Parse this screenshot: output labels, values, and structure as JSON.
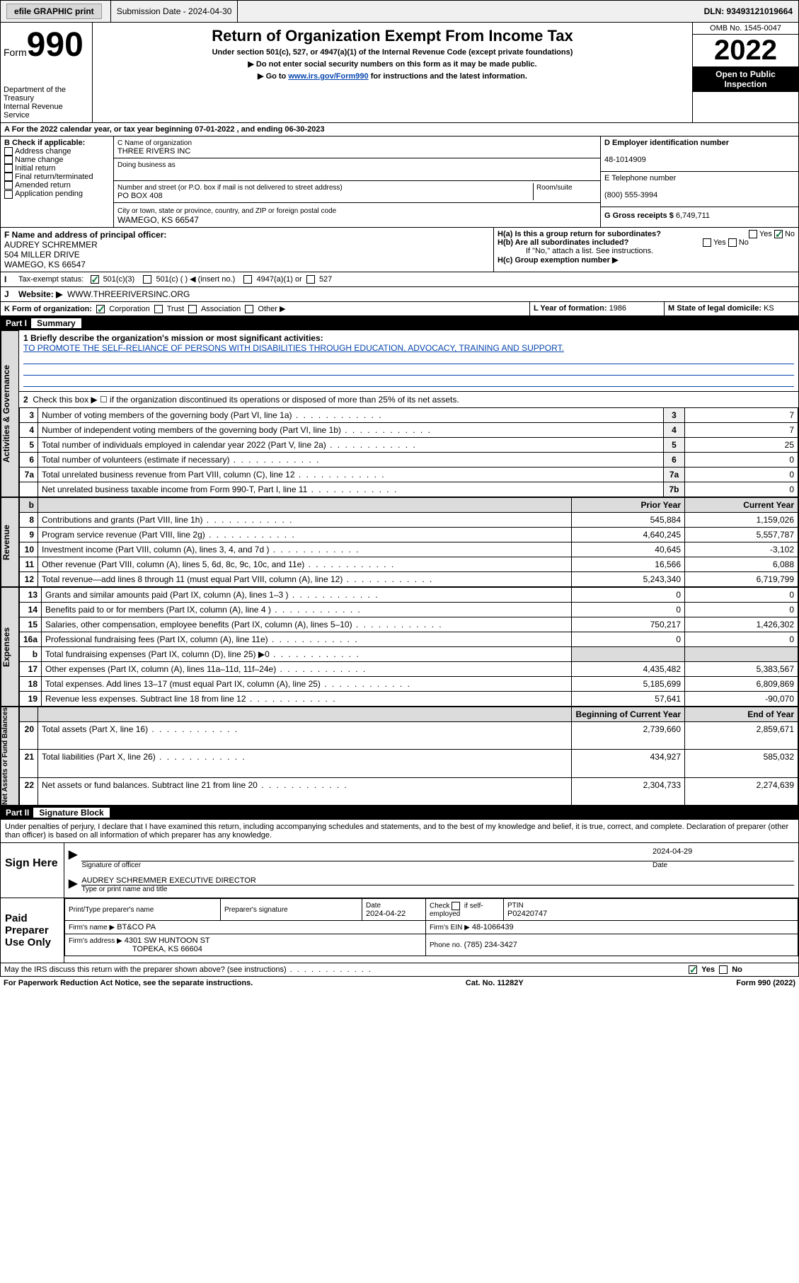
{
  "topbar": {
    "efile_label": "efile GRAPHIC print",
    "submission_label": "Submission Date - 2024-04-30",
    "dln_label": "DLN: 93493121019664"
  },
  "header": {
    "form_word": "Form",
    "form_num": "990",
    "dept": "Department of the Treasury",
    "irs": "Internal Revenue Service",
    "title": "Return of Organization Exempt From Income Tax",
    "sub1": "Under section 501(c), 527, or 4947(a)(1) of the Internal Revenue Code (except private foundations)",
    "sub2": "▶ Do not enter social security numbers on this form as it may be made public.",
    "sub3_pre": "▶ Go to ",
    "sub3_link": "www.irs.gov/Form990",
    "sub3_post": " for instructions and the latest information.",
    "omb": "OMB No. 1545-0047",
    "year": "2022",
    "open": "Open to Public Inspection"
  },
  "periodA": "For the 2022 calendar year, or tax year beginning 07-01-2022   , and ending 06-30-2023",
  "boxB": {
    "label": "B Check if applicable:",
    "items": [
      "Address change",
      "Name change",
      "Initial return",
      "Final return/terminated",
      "Amended return",
      "Application pending"
    ]
  },
  "boxC": {
    "name_label": "C Name of organization",
    "name": "THREE RIVERS INC",
    "dba_label": "Doing business as",
    "addr_label": "Number and street (or P.O. box if mail is not delivered to street address)",
    "room_label": "Room/suite",
    "addr": "PO BOX 408",
    "city_label": "City or town, state or province, country, and ZIP or foreign postal code",
    "city": "WAMEGO, KS  66547"
  },
  "boxD": {
    "label": "D Employer identification number",
    "val": "48-1014909"
  },
  "boxE": {
    "label": "E Telephone number",
    "val": "(800) 555-3994"
  },
  "boxG": {
    "label": "G Gross receipts $",
    "val": "6,749,711"
  },
  "boxF": {
    "label": "F Name and address of principal officer:",
    "name": "AUDREY SCHREMMER",
    "addr1": "504 MILLER DRIVE",
    "addr2": "WAMEGO, KS  66547"
  },
  "boxH": {
    "a": "H(a)  Is this a group return for subordinates?",
    "b": "H(b)  Are all subordinates included?",
    "bnote": "If \"No,\" attach a list. See instructions.",
    "c": "H(c)  Group exemption number ▶",
    "yes": "Yes",
    "no": "No"
  },
  "boxI": {
    "label": "Tax-exempt status:",
    "o1": "501(c)(3)",
    "o2": "501(c) (  ) ◀ (insert no.)",
    "o3": "4947(a)(1) or",
    "o4": "527"
  },
  "boxJ": {
    "label": "Website: ▶",
    "val": "WWW.THREERIVERSINC.ORG"
  },
  "boxK": {
    "label": "K Form of organization:",
    "opts": [
      "Corporation",
      "Trust",
      "Association",
      "Other ▶"
    ]
  },
  "boxL": {
    "label": "L Year of formation:",
    "val": "1986"
  },
  "boxM": {
    "label": "M State of legal domicile:",
    "val": "KS"
  },
  "part1": {
    "num": "Part I",
    "title": "Summary"
  },
  "mission_label": "1  Briefly describe the organization's mission or most significant activities:",
  "mission": "TO PROMOTE THE SELF-RELIANCE OF PERSONS WITH DISABILITIES THROUGH EDUCATION, ADVOCACY, TRAINING AND SUPPORT.",
  "line2": "Check this box ▶ ☐  if the organization discontinued its operations or disposed of more than 25% of its net assets.",
  "sides": {
    "ag": "Activities & Governance",
    "rev": "Revenue",
    "exp": "Expenses",
    "na": "Net Assets or Fund Balances"
  },
  "col_headers": {
    "prior": "Prior Year",
    "current": "Current Year",
    "boy": "Beginning of Current Year",
    "eoy": "End of Year"
  },
  "lines_ag": [
    {
      "n": "3",
      "d": "Number of voting members of the governing body (Part VI, line 1a)",
      "r": "3",
      "v": "7"
    },
    {
      "n": "4",
      "d": "Number of independent voting members of the governing body (Part VI, line 1b)",
      "r": "4",
      "v": "7"
    },
    {
      "n": "5",
      "d": "Total number of individuals employed in calendar year 2022 (Part V, line 2a)",
      "r": "5",
      "v": "25"
    },
    {
      "n": "6",
      "d": "Total number of volunteers (estimate if necessary)",
      "r": "6",
      "v": "0"
    },
    {
      "n": "7a",
      "d": "Total unrelated business revenue from Part VIII, column (C), line 12",
      "r": "7a",
      "v": "0"
    },
    {
      "n": "",
      "d": "Net unrelated business taxable income from Form 990-T, Part I, line 11",
      "r": "7b",
      "v": "0"
    }
  ],
  "lines_rev": [
    {
      "n": "8",
      "d": "Contributions and grants (Part VIII, line 1h)",
      "p": "545,884",
      "c": "1,159,026"
    },
    {
      "n": "9",
      "d": "Program service revenue (Part VIII, line 2g)",
      "p": "4,640,245",
      "c": "5,557,787"
    },
    {
      "n": "10",
      "d": "Investment income (Part VIII, column (A), lines 3, 4, and 7d )",
      "p": "40,645",
      "c": "-3,102"
    },
    {
      "n": "11",
      "d": "Other revenue (Part VIII, column (A), lines 5, 6d, 8c, 9c, 10c, and 11e)",
      "p": "16,566",
      "c": "6,088"
    },
    {
      "n": "12",
      "d": "Total revenue—add lines 8 through 11 (must equal Part VIII, column (A), line 12)",
      "p": "5,243,340",
      "c": "6,719,799"
    }
  ],
  "lines_exp": [
    {
      "n": "13",
      "d": "Grants and similar amounts paid (Part IX, column (A), lines 1–3 )",
      "p": "0",
      "c": "0"
    },
    {
      "n": "14",
      "d": "Benefits paid to or for members (Part IX, column (A), line 4 )",
      "p": "0",
      "c": "0"
    },
    {
      "n": "15",
      "d": "Salaries, other compensation, employee benefits (Part IX, column (A), lines 5–10)",
      "p": "750,217",
      "c": "1,426,302"
    },
    {
      "n": "16a",
      "d": "Professional fundraising fees (Part IX, column (A), line 11e)",
      "p": "0",
      "c": "0"
    },
    {
      "n": "b",
      "d": "Total fundraising expenses (Part IX, column (D), line 25) ▶0",
      "p": "",
      "c": ""
    },
    {
      "n": "17",
      "d": "Other expenses (Part IX, column (A), lines 11a–11d, 11f–24e)",
      "p": "4,435,482",
      "c": "5,383,567"
    },
    {
      "n": "18",
      "d": "Total expenses. Add lines 13–17 (must equal Part IX, column (A), line 25)",
      "p": "5,185,699",
      "c": "6,809,869"
    },
    {
      "n": "19",
      "d": "Revenue less expenses. Subtract line 18 from line 12",
      "p": "57,641",
      "c": "-90,070"
    }
  ],
  "lines_na": [
    {
      "n": "20",
      "d": "Total assets (Part X, line 16)",
      "p": "2,739,660",
      "c": "2,859,671"
    },
    {
      "n": "21",
      "d": "Total liabilities (Part X, line 26)",
      "p": "434,927",
      "c": "585,032"
    },
    {
      "n": "22",
      "d": "Net assets or fund balances. Subtract line 21 from line 20",
      "p": "2,304,733",
      "c": "2,274,639"
    }
  ],
  "part2": {
    "num": "Part II",
    "title": "Signature Block"
  },
  "perjury": "Under penalties of perjury, I declare that I have examined this return, including accompanying schedules and statements, and to the best of my knowledge and belief, it is true, correct, and complete. Declaration of preparer (other than officer) is based on all information of which preparer has any knowledge.",
  "sign": {
    "here": "Sign Here",
    "sig_label": "Signature of officer",
    "date": "2024-04-29",
    "date_label": "Date",
    "name": "AUDREY SCHREMMER  EXECUTIVE DIRECTOR",
    "name_label": "Type or print name and title"
  },
  "prep": {
    "title": "Paid Preparer Use Only",
    "h1": "Print/Type preparer's name",
    "h2": "Preparer's signature",
    "h3": "Date",
    "date": "2024-04-22",
    "h4_pre": "Check",
    "h4_post": "if self-employed",
    "h5": "PTIN",
    "ptin": "P02420747",
    "firm_name_label": "Firm's name    ▶",
    "firm_name": "BT&CO PA",
    "firm_ein_label": "Firm's EIN ▶",
    "firm_ein": "48-1066439",
    "firm_addr_label": "Firm's address ▶",
    "firm_addr1": "4301 SW HUNTOON ST",
    "firm_addr2": "TOPEKA, KS  66604",
    "phone_label": "Phone no.",
    "phone": "(785) 234-3427"
  },
  "discuss": "May the IRS discuss this return with the preparer shown above? (see instructions)",
  "footer": {
    "left": "For Paperwork Reduction Act Notice, see the separate instructions.",
    "mid": "Cat. No. 11282Y",
    "right": "Form 990 (2022)"
  }
}
